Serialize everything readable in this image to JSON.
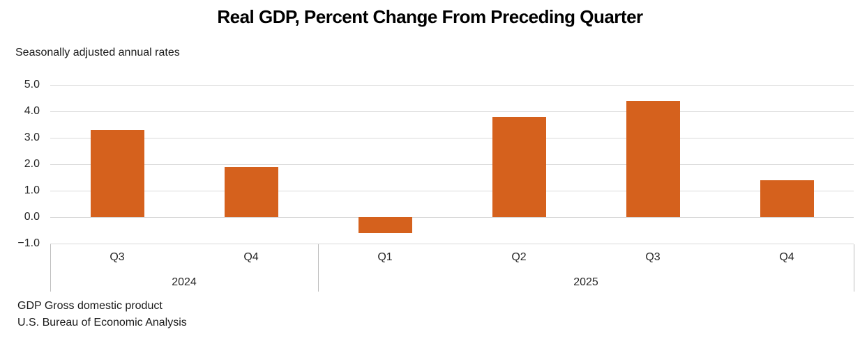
{
  "chart_data": {
    "type": "bar",
    "title": "Real GDP, Percent Change From Preceding Quarter",
    "subtitle": "Seasonally adjusted annual rates",
    "categories": [
      "Q3",
      "Q4",
      "Q1",
      "Q2",
      "Q3",
      "Q4"
    ],
    "values": [
      3.3,
      1.9,
      -0.6,
      3.8,
      4.4,
      1.4
    ],
    "year_groups": [
      {
        "label": "2024",
        "span": 2
      },
      {
        "label": "2025",
        "span": 4
      }
    ],
    "y_ticks": [
      5.0,
      4.0,
      3.0,
      2.0,
      1.0,
      0.0,
      -1.0
    ],
    "y_tick_labels": [
      "5.0",
      "4.0",
      "3.0",
      "2.0",
      "1.0",
      "0.0",
      "−1.0"
    ],
    "ylim": [
      -1.0,
      5.0
    ],
    "grid": true,
    "legend": "none",
    "bar_color": "#D5611D",
    "gridline_color": "#D9D9D9",
    "axis_border_color": "#BFBFBF"
  },
  "footer": {
    "line1": "GDP Gross domestic product",
    "line2": "U.S. Bureau of Economic Analysis"
  }
}
